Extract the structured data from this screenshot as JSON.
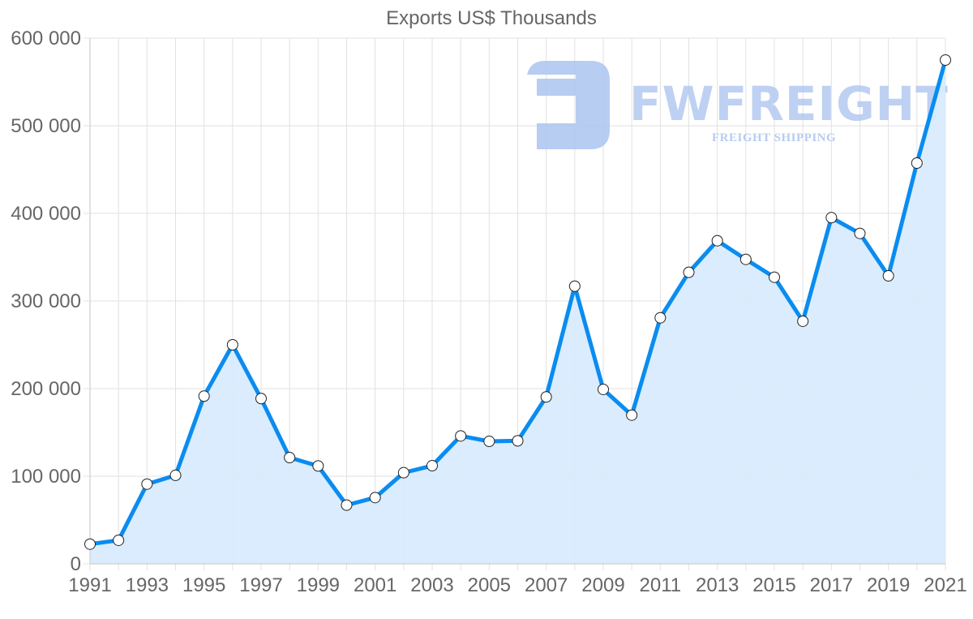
{
  "chart_data": {
    "type": "line",
    "title": "Exports US$ Thousands",
    "xlabel": "",
    "ylabel": "",
    "x": [
      1991,
      1992,
      1993,
      1994,
      1995,
      1996,
      1997,
      1998,
      1999,
      2000,
      2001,
      2002,
      2003,
      2004,
      2005,
      2006,
      2007,
      2008,
      2009,
      2010,
      2011,
      2012,
      2013,
      2014,
      2015,
      2016,
      2017,
      2018,
      2019,
      2020,
      2021
    ],
    "series": [
      {
        "name": "Exports US$ Thousands",
        "values": [
          22500,
          26900,
          91000,
          101000,
          191400,
          250000,
          188600,
          121300,
          111700,
          67000,
          75600,
          104000,
          112000,
          146000,
          139800,
          140400,
          190500,
          316900,
          199100,
          169700,
          280800,
          332700,
          368800,
          347500,
          327100,
          276900,
          395100,
          377100,
          328700,
          457400,
          575000
        ],
        "color": "#0a8cf0",
        "fill": "#d8ebfd"
      }
    ],
    "ylim": [
      0,
      600000
    ],
    "yticks": [
      0,
      100000,
      200000,
      300000,
      400000,
      500000,
      600000
    ],
    "ytick_labels": [
      "0",
      "100 000",
      "200 000",
      "300 000",
      "400 000",
      "500 000",
      "600 000"
    ],
    "xtick_labels": [
      "1991",
      "1993",
      "1995",
      "1997",
      "1999",
      "2001",
      "2003",
      "2005",
      "2007",
      "2009",
      "2011",
      "2013",
      "2015",
      "2017",
      "2019",
      "2021"
    ],
    "grid": true,
    "legend": null,
    "watermark": {
      "text": "FWFREIGHT",
      "subtext": "FREIGHT SHIPPING"
    }
  }
}
